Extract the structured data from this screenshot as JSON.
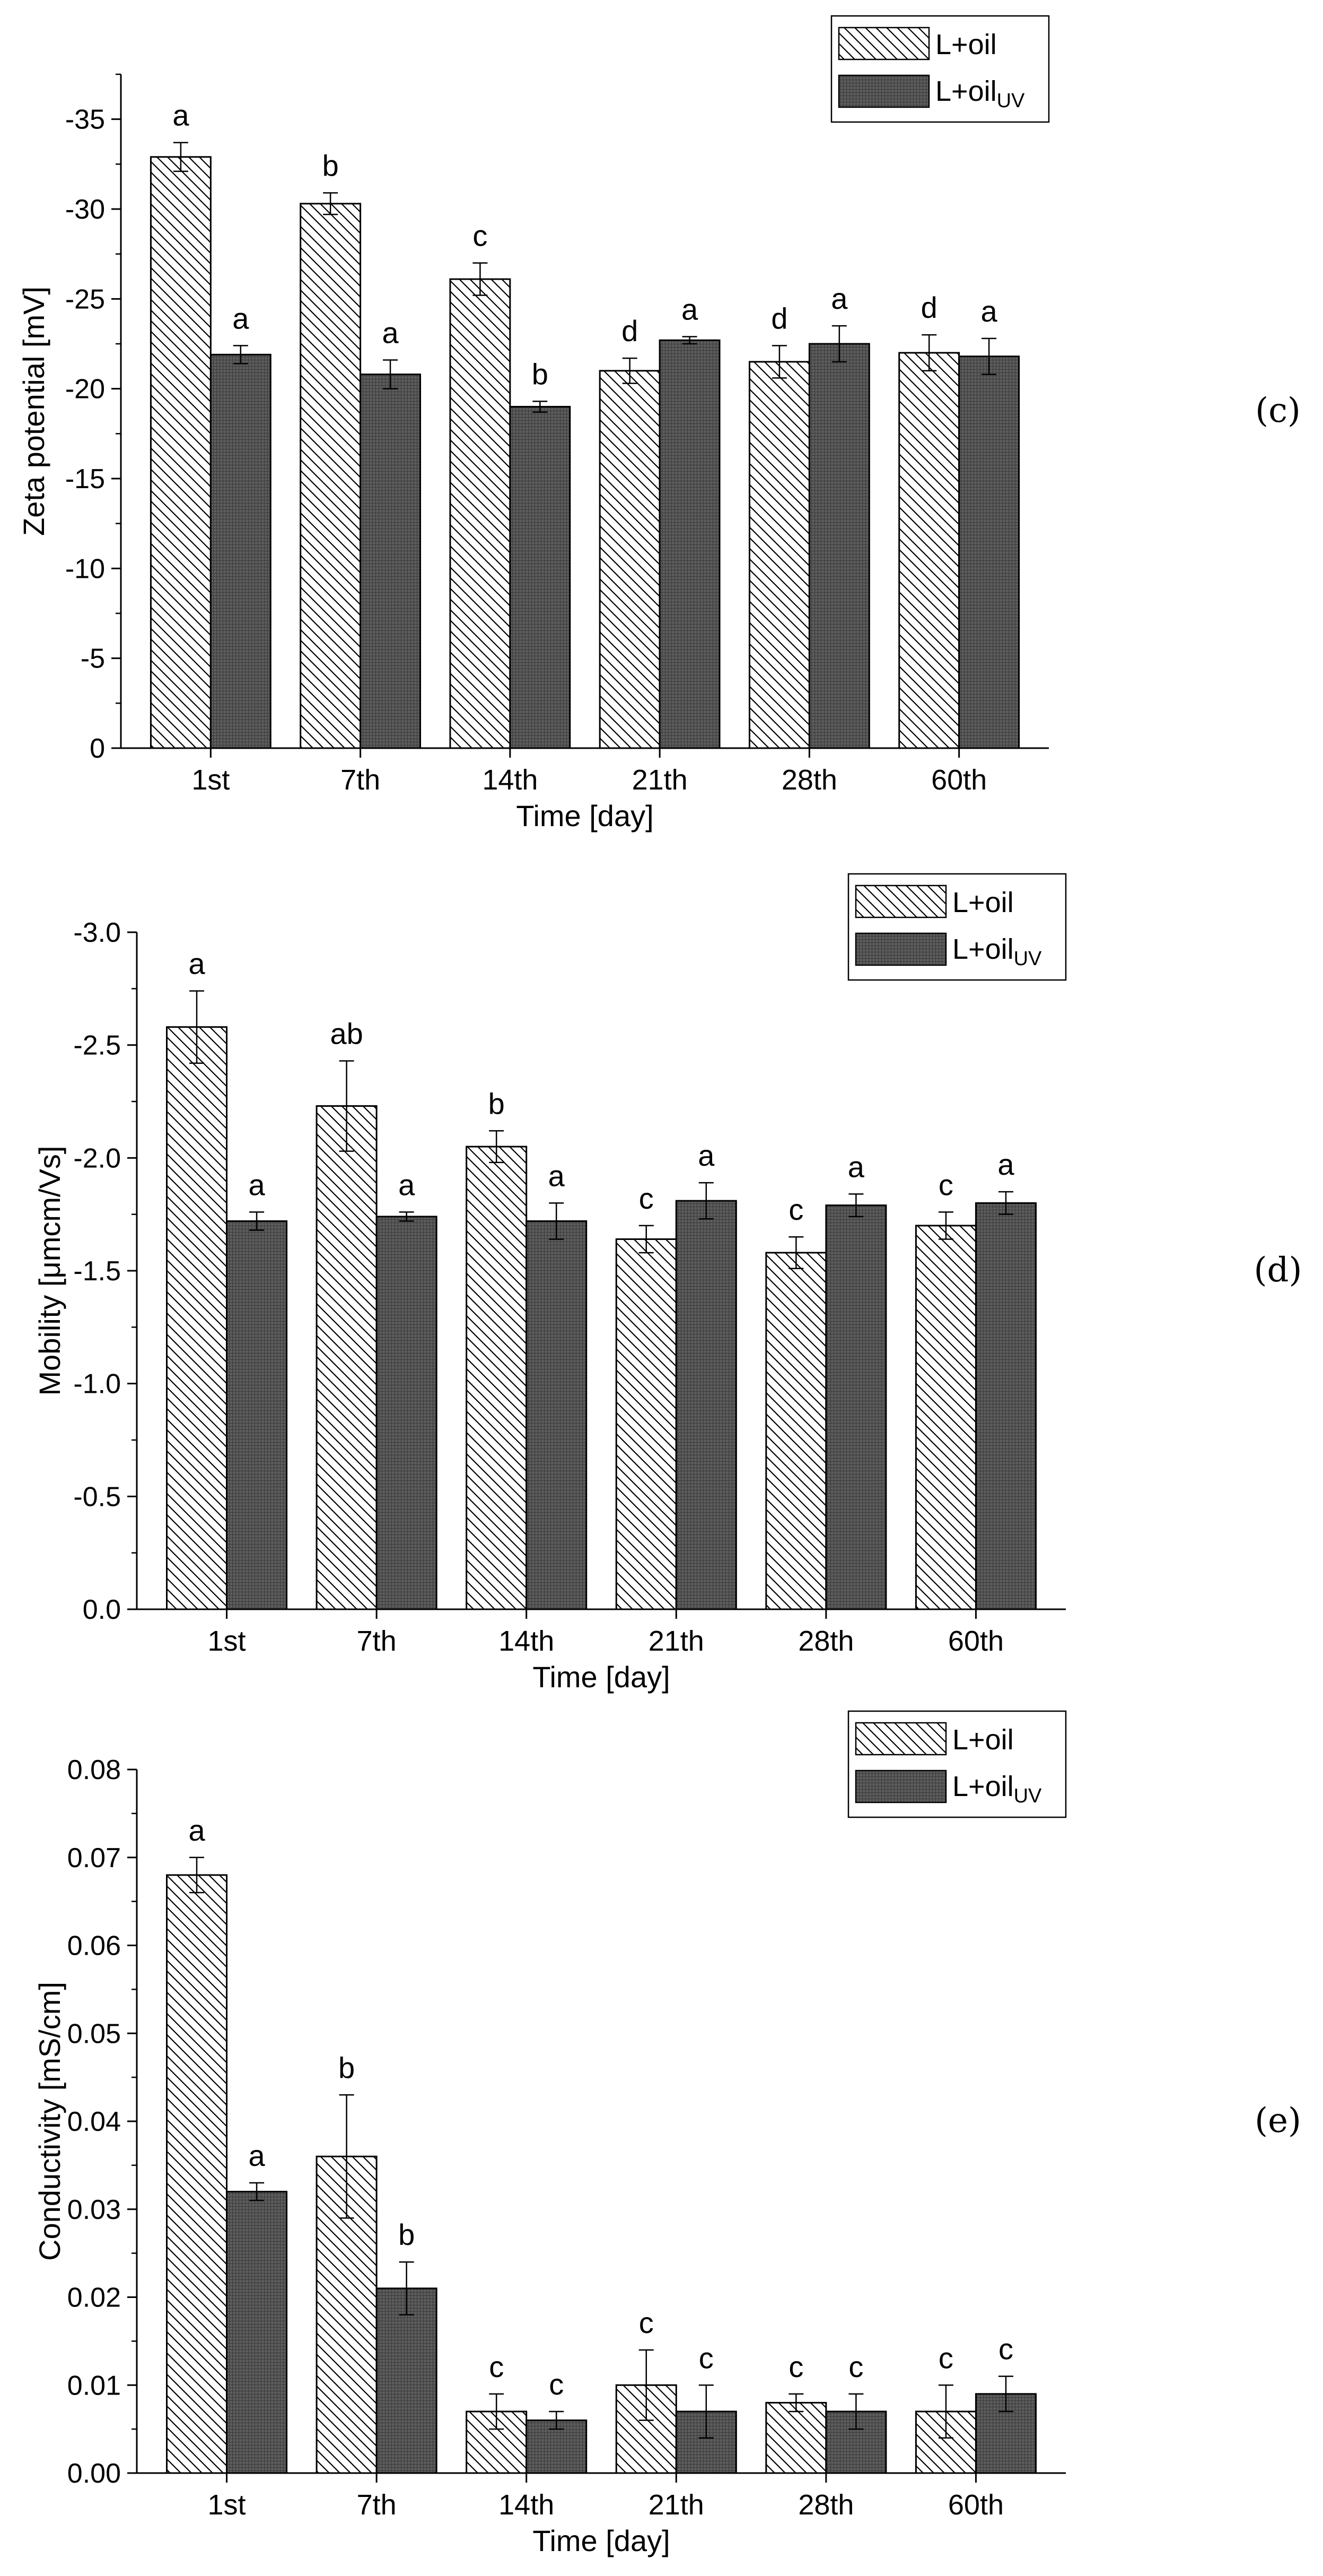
{
  "chart_data": [
    {
      "type": "bar",
      "panel_label": "(c)",
      "categories": [
        "1st",
        "7th",
        "14th",
        "21th",
        "28th",
        "60th"
      ],
      "xlabel": "Time [day]",
      "ylabel": "Zeta potential [mV]",
      "ylim": [
        0,
        -37.5
      ],
      "yticks": [
        "0",
        "-5",
        "-10",
        "-15",
        "-20",
        "-25",
        "-30",
        "-35"
      ],
      "ytick_values": [
        0,
        -5,
        -10,
        -15,
        -20,
        -25,
        -30,
        -35
      ],
      "legend": {
        "position": "top-right",
        "series_a": "L+oil",
        "series_b_main": "L+oil",
        "series_b_sub": "UV"
      },
      "series": [
        {
          "name": "L+oil",
          "pattern": "hatch",
          "values": [
            -32.9,
            -30.3,
            -26.1,
            -21.0,
            -21.5,
            -22.0
          ],
          "errors": [
            0.8,
            0.6,
            0.9,
            0.7,
            0.9,
            1.0
          ],
          "letters": [
            "a",
            "b",
            "c",
            "d",
            "d",
            "d"
          ]
        },
        {
          "name": "L+oil_UV",
          "pattern": "grid",
          "values": [
            -21.9,
            -20.8,
            -19.0,
            -22.7,
            -22.5,
            -21.8
          ],
          "errors": [
            0.5,
            0.8,
            0.3,
            0.2,
            1.0,
            1.0
          ],
          "letters": [
            "a",
            "a",
            "b",
            "a",
            "a",
            "a"
          ]
        }
      ]
    },
    {
      "type": "bar",
      "panel_label": "(d)",
      "categories": [
        "1st",
        "7th",
        "14th",
        "21th",
        "28th",
        "60th"
      ],
      "xlabel": "Time [day]",
      "ylabel": "Mobility [μmcm/Vs]",
      "ylim": [
        0,
        -3.0
      ],
      "yticks": [
        "0.0",
        "-0.5",
        "-1.0",
        "-1.5",
        "-2.0",
        "-2.5",
        "-3.0"
      ],
      "ytick_values": [
        0,
        -0.5,
        -1.0,
        -1.5,
        -2.0,
        -2.5,
        -3.0
      ],
      "legend": {
        "position": "top-right",
        "series_a": "L+oil",
        "series_b_main": "L+oil",
        "series_b_sub": "UV"
      },
      "series": [
        {
          "name": "L+oil",
          "pattern": "hatch",
          "values": [
            -2.58,
            -2.23,
            -2.05,
            -1.64,
            -1.58,
            -1.7
          ],
          "errors": [
            0.16,
            0.2,
            0.07,
            0.06,
            0.07,
            0.06
          ],
          "letters": [
            "a",
            "ab",
            "b",
            "c",
            "c",
            "c"
          ]
        },
        {
          "name": "L+oil_UV",
          "pattern": "grid",
          "values": [
            -1.72,
            -1.74,
            -1.72,
            -1.81,
            -1.79,
            -1.8
          ],
          "errors": [
            0.04,
            0.02,
            0.08,
            0.08,
            0.05,
            0.05
          ],
          "letters": [
            "a",
            "a",
            "a",
            "a",
            "a",
            "a"
          ]
        }
      ]
    },
    {
      "type": "bar",
      "panel_label": "(e)",
      "categories": [
        "1st",
        "7th",
        "14th",
        "21th",
        "28th",
        "60th"
      ],
      "xlabel": "Time [day]",
      "ylabel": "Conductivity [mS/cm]",
      "ylim": [
        0,
        0.08
      ],
      "yticks": [
        "0.00",
        "0.01",
        "0.02",
        "0.03",
        "0.04",
        "0.05",
        "0.06",
        "0.07",
        "0.08"
      ],
      "ytick_values": [
        0,
        0.01,
        0.02,
        0.03,
        0.04,
        0.05,
        0.06,
        0.07,
        0.08
      ],
      "legend": {
        "position": "top-right",
        "series_a": "L+oil",
        "series_b_main": "L+oil",
        "series_b_sub": "UV"
      },
      "series": [
        {
          "name": "L+oil",
          "pattern": "hatch",
          "values": [
            0.068,
            0.036,
            0.007,
            0.01,
            0.008,
            0.007
          ],
          "errors": [
            0.002,
            0.007,
            0.002,
            0.004,
            0.001,
            0.003
          ],
          "letters": [
            "a",
            "b",
            "c",
            "c",
            "c",
            "c"
          ]
        },
        {
          "name": "L+oil_UV",
          "pattern": "grid",
          "values": [
            0.032,
            0.021,
            0.006,
            0.007,
            0.007,
            0.009
          ],
          "errors": [
            0.001,
            0.003,
            0.001,
            0.003,
            0.002,
            0.002
          ],
          "letters": [
            "a",
            "b",
            "c",
            "c",
            "c",
            "c"
          ]
        }
      ]
    }
  ]
}
